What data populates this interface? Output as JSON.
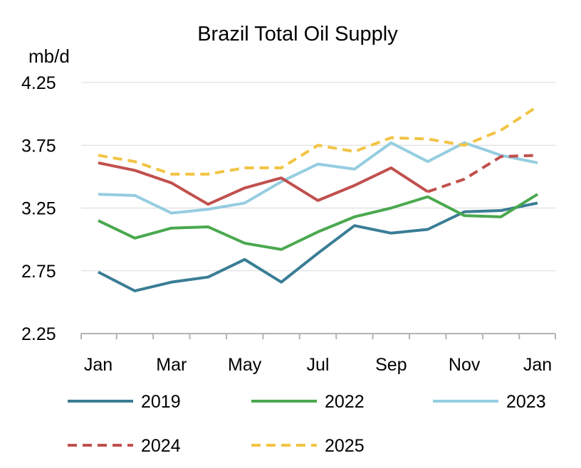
{
  "chart_data": {
    "type": "line",
    "title": "Brazil Total Oil Supply",
    "ylabel": "mb/d",
    "xlabel": "",
    "ylim": [
      2.25,
      4.25
    ],
    "yticks": [
      "4.25",
      "3.75",
      "3.25",
      "2.75",
      "2.25"
    ],
    "categories": [
      "Jan",
      "Feb",
      "Mar",
      "Apr",
      "May",
      "Jun",
      "Jul",
      "Aug",
      "Sep",
      "Oct",
      "Nov",
      "Dec",
      "Jan"
    ],
    "xtick_labels": [
      "Jan",
      "",
      "Mar",
      "",
      "May",
      "",
      "Jul",
      "",
      "Sep",
      "",
      "Nov",
      "",
      "Jan"
    ],
    "grid": true,
    "legend_position": "bottom",
    "series": [
      {
        "name": "2019",
        "color": "#3a7d95",
        "dash": "solid",
        "values": [
          2.74,
          2.59,
          2.66,
          2.7,
          2.84,
          2.66,
          2.89,
          3.11,
          3.05,
          3.08,
          3.22,
          3.23,
          3.29
        ]
      },
      {
        "name": "2022",
        "color": "#4aa84f",
        "dash": "solid",
        "values": [
          3.15,
          3.01,
          3.09,
          3.1,
          2.97,
          2.92,
          3.06,
          3.18,
          3.25,
          3.34,
          3.19,
          3.18,
          3.36
        ]
      },
      {
        "name": "2023",
        "color": "#95cde0",
        "dash": "solid",
        "values": [
          3.36,
          3.35,
          3.21,
          3.24,
          3.29,
          3.46,
          3.6,
          3.56,
          3.77,
          3.62,
          3.77,
          3.67,
          3.61
        ]
      },
      {
        "name": "2024",
        "color": "#c0504d",
        "dash": "dashed",
        "solid_until_index": 9,
        "values": [
          3.61,
          3.55,
          3.45,
          3.28,
          3.41,
          3.49,
          3.31,
          3.43,
          3.57,
          3.38,
          3.48,
          3.66,
          3.67
        ]
      },
      {
        "name": "2025",
        "color": "#f2c444",
        "dash": "dashed",
        "values": [
          3.67,
          3.62,
          3.52,
          3.52,
          3.57,
          3.57,
          3.75,
          3.7,
          3.81,
          3.8,
          3.75,
          3.87,
          4.06
        ]
      }
    ]
  }
}
